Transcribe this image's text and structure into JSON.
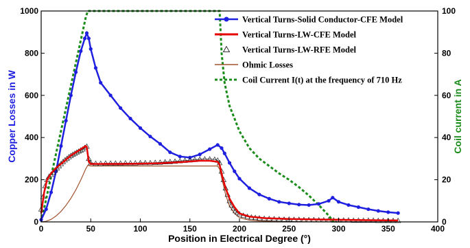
{
  "chart_data": {
    "type": "line",
    "xlabel": "Position in Electrical Degree (°)",
    "ylabel_left": "Copper Losses in W",
    "ylabel_right": "Coil current in A",
    "xlim": [
      0,
      400
    ],
    "ylim_left": [
      0,
      1000
    ],
    "ylim_right": [
      0,
      100
    ],
    "x_ticks": [
      "0",
      "50",
      "100",
      "150",
      "200",
      "250",
      "300",
      "350",
      "400"
    ],
    "y_left_ticks": [
      "0",
      "200",
      "400",
      "600",
      "800",
      "1000"
    ],
    "y_right_ticks": [
      "0",
      "20",
      "40",
      "60",
      "80",
      "100"
    ],
    "grid": false,
    "legend_position": "top-right",
    "colors": {
      "left_axis": "#1f1fe0",
      "right_axis": "#1a8c1a"
    },
    "series": [
      {
        "name": "Vertical Turns-Solid Conductor-CFE Model",
        "axis": "left",
        "color": "#1f1fe0",
        "marker": "dot",
        "x": [
          0,
          5,
          10,
          15,
          20,
          25,
          30,
          35,
          40,
          44,
          46,
          48,
          50,
          55,
          60,
          70,
          80,
          90,
          100,
          110,
          120,
          130,
          140,
          150,
          160,
          170,
          178,
          182,
          185,
          190,
          195,
          200,
          210,
          220,
          230,
          240,
          250,
          260,
          270,
          280,
          290,
          294,
          300,
          310,
          320,
          330,
          340,
          350,
          360
        ],
        "y": [
          10,
          60,
          140,
          240,
          360,
          480,
          600,
          710,
          810,
          870,
          895,
          870,
          820,
          730,
          660,
          600,
          540,
          490,
          445,
          405,
          370,
          330,
          310,
          305,
          320,
          345,
          365,
          350,
          325,
          280,
          240,
          205,
          160,
          130,
          110,
          95,
          88,
          82,
          80,
          85,
          100,
          115,
          95,
          80,
          70,
          60,
          52,
          46,
          42
        ]
      },
      {
        "name": "Vertical Turns-LW-CFE Model",
        "axis": "left",
        "color": "#e60000",
        "marker": "none",
        "x": [
          0,
          3,
          6,
          10,
          15,
          20,
          25,
          30,
          35,
          40,
          45,
          46,
          47,
          48,
          50,
          60,
          80,
          100,
          120,
          140,
          160,
          170,
          178,
          180,
          181,
          183,
          186,
          190,
          195,
          200,
          210,
          225,
          250,
          275,
          300,
          330,
          360
        ],
        "y": [
          40,
          140,
          200,
          230,
          255,
          275,
          295,
          315,
          330,
          345,
          360,
          355,
          320,
          285,
          275,
          275,
          275,
          276,
          278,
          283,
          290,
          290,
          285,
          270,
          250,
          210,
          160,
          110,
          70,
          40,
          25,
          18,
          14,
          12,
          10,
          8,
          7
        ]
      },
      {
        "name": "Vertical Turns-LW-RFE Model",
        "axis": "left",
        "color": "#222222",
        "marker": "triangle",
        "x": [
          0,
          2,
          4,
          6,
          8,
          10,
          12,
          14,
          16,
          18,
          20,
          22,
          24,
          26,
          28,
          30,
          32,
          34,
          36,
          38,
          40,
          42,
          44,
          46,
          48,
          50,
          55,
          60,
          65,
          70,
          75,
          80,
          85,
          90,
          95,
          100,
          105,
          110,
          115,
          120,
          125,
          130,
          135,
          140,
          145,
          150,
          155,
          160,
          165,
          170,
          175,
          178,
          180,
          182,
          184,
          186,
          188,
          190,
          192,
          194,
          196,
          198,
          200,
          204,
          208,
          212,
          216,
          220,
          225,
          230,
          235,
          240,
          245,
          250,
          255,
          260,
          265,
          270,
          275,
          280,
          285,
          290,
          295,
          300,
          305,
          310,
          315,
          320,
          325,
          330,
          335,
          340,
          345,
          350,
          355,
          360
        ],
        "y": [
          60,
          120,
          170,
          200,
          215,
          225,
          235,
          245,
          255,
          265,
          275,
          285,
          293,
          300,
          308,
          314,
          320,
          325,
          330,
          335,
          340,
          345,
          352,
          358,
          300,
          280,
          277,
          277,
          278,
          278,
          278,
          278,
          279,
          279,
          279,
          280,
          280,
          280,
          281,
          282,
          284,
          285,
          287,
          289,
          291,
          293,
          295,
          297,
          298,
          298,
          296,
          292,
          280,
          240,
          200,
          160,
          130,
          100,
          80,
          65,
          52,
          45,
          38,
          30,
          25,
          22,
          20,
          18,
          16,
          15,
          14,
          13,
          12,
          12,
          11,
          11,
          10,
          10,
          10,
          9,
          9,
          9,
          8,
          8,
          8,
          8,
          7,
          7,
          7,
          7,
          7,
          6,
          6,
          6,
          6,
          6
        ]
      },
      {
        "name": "Ohmic Losses",
        "axis": "left",
        "color": "#a0522d",
        "marker": "none",
        "x": [
          0,
          5,
          10,
          15,
          20,
          25,
          30,
          35,
          40,
          45,
          47,
          50,
          100,
          150,
          178,
          180,
          183,
          186,
          190,
          195,
          200,
          210,
          220,
          240,
          270,
          300,
          330,
          360
        ],
        "y": [
          0,
          3,
          12,
          28,
          50,
          78,
          112,
          152,
          199,
          252,
          268,
          265,
          265,
          265,
          265,
          250,
          190,
          130,
          75,
          40,
          20,
          8,
          4,
          2,
          1,
          1,
          0,
          0
        ]
      },
      {
        "name": "Coil Current I(t) at the frequency of 710 Hz",
        "axis": "right",
        "color": "#1a8c1a",
        "marker": "none",
        "style": "dashed",
        "x": [
          0,
          45,
          47,
          100,
          150,
          180,
          182,
          185,
          190,
          200,
          210,
          220,
          230,
          240,
          250,
          260,
          270,
          280,
          290,
          295
        ],
        "y": [
          0,
          97,
          100,
          100,
          100,
          100,
          80,
          66,
          55,
          43,
          35,
          30,
          26.5,
          23,
          20,
          16.5,
          12.5,
          8,
          3,
          0
        ]
      }
    ]
  }
}
